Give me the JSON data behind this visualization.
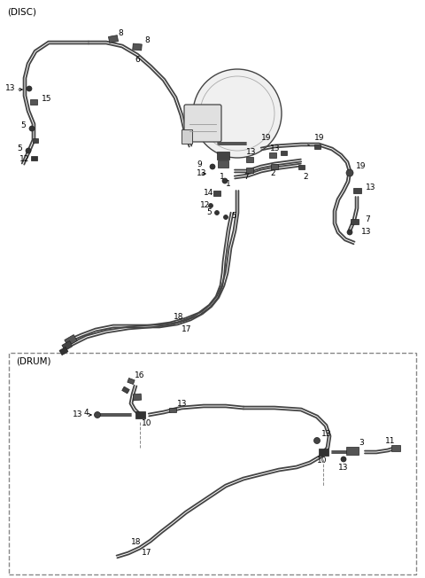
{
  "bg_color": "#ffffff",
  "line_color": "#444444",
  "text_color": "#000000",
  "disc_label": "(DISC)",
  "drum_label": "(DRUM)",
  "figsize": [
    4.8,
    6.52
  ],
  "dpi": 100
}
